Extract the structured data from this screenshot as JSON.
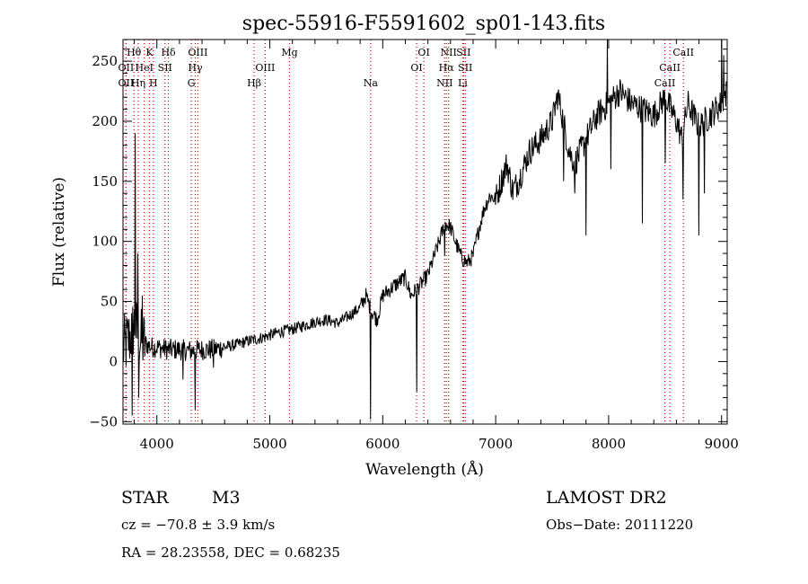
{
  "chart_data": {
    "type": "line",
    "title": "spec-55916-F5591602_sp01-143.fits",
    "xlabel": "Wavelength (Å)",
    "ylabel": "Flux (relative)",
    "xlim": [
      3700,
      9050
    ],
    "ylim": [
      -52,
      268
    ],
    "xticks": [
      4000,
      5000,
      6000,
      7000,
      8000,
      9000
    ],
    "yticks": [
      -50,
      0,
      50,
      100,
      150,
      200,
      250
    ],
    "line_color": "#000000",
    "marker_color": "#cc0000",
    "spectrum_anchors": [
      [
        3700,
        10
      ],
      [
        3760,
        20
      ],
      [
        3800,
        30
      ],
      [
        3850,
        18
      ],
      [
        3900,
        15
      ],
      [
        3950,
        12
      ],
      [
        4000,
        12
      ],
      [
        4100,
        10
      ],
      [
        4200,
        10
      ],
      [
        4300,
        9
      ],
      [
        4400,
        10
      ],
      [
        4500,
        10
      ],
      [
        4600,
        12
      ],
      [
        4700,
        14
      ],
      [
        4800,
        17
      ],
      [
        4900,
        19
      ],
      [
        5000,
        22
      ],
      [
        5100,
        25
      ],
      [
        5200,
        27
      ],
      [
        5300,
        30
      ],
      [
        5400,
        33
      ],
      [
        5500,
        35
      ],
      [
        5600,
        32
      ],
      [
        5700,
        38
      ],
      [
        5800,
        45
      ],
      [
        5850,
        55
      ],
      [
        5900,
        42
      ],
      [
        5950,
        35
      ],
      [
        6000,
        55
      ],
      [
        6100,
        63
      ],
      [
        6200,
        70
      ],
      [
        6250,
        55
      ],
      [
        6300,
        60
      ],
      [
        6400,
        72
      ],
      [
        6500,
        100
      ],
      [
        6550,
        115
      ],
      [
        6600,
        112
      ],
      [
        6650,
        98
      ],
      [
        6700,
        86
      ],
      [
        6750,
        82
      ],
      [
        6800,
        88
      ],
      [
        6850,
        110
      ],
      [
        6900,
        128
      ],
      [
        6950,
        138
      ],
      [
        7000,
        135
      ],
      [
        7050,
        150
      ],
      [
        7100,
        165
      ],
      [
        7150,
        142
      ],
      [
        7200,
        150
      ],
      [
        7300,
        175
      ],
      [
        7400,
        185
      ],
      [
        7500,
        200
      ],
      [
        7550,
        222
      ],
      [
        7600,
        200
      ],
      [
        7650,
        175
      ],
      [
        7700,
        165
      ],
      [
        7800,
        185
      ],
      [
        7900,
        205
      ],
      [
        8000,
        215
      ],
      [
        8100,
        225
      ],
      [
        8200,
        215
      ],
      [
        8300,
        210
      ],
      [
        8400,
        205
      ],
      [
        8500,
        220
      ],
      [
        8600,
        200
      ],
      [
        8650,
        185
      ],
      [
        8700,
        215
      ],
      [
        8800,
        195
      ],
      [
        8900,
        205
      ],
      [
        9000,
        215
      ],
      [
        9050,
        225
      ]
    ],
    "spectrum_dips": [
      [
        3780,
        -45
      ],
      [
        3840,
        -30
      ],
      [
        4230,
        -15
      ],
      [
        4340,
        -40
      ],
      [
        4500,
        -5
      ],
      [
        5890,
        -48
      ],
      [
        6300,
        -25
      ],
      [
        6550,
        88
      ],
      [
        7600,
        150
      ],
      [
        7700,
        140
      ],
      [
        7800,
        105
      ],
      [
        8300,
        115
      ],
      [
        8500,
        165
      ],
      [
        8660,
        135
      ],
      [
        8800,
        105
      ],
      [
        8850,
        140
      ]
    ],
    "spectrum_spikes": [
      [
        3810,
        190
      ],
      [
        3830,
        90
      ],
      [
        3870,
        55
      ],
      [
        7990,
        268
      ],
      [
        8020,
        160
      ],
      [
        9000,
        268
      ],
      [
        9020,
        255
      ]
    ],
    "line_markers": [
      {
        "label": "Hθ",
        "x": 3797,
        "row": 0
      },
      {
        "label": "OII",
        "x": 3727,
        "row": 1
      },
      {
        "label": "OII",
        "x": 3727,
        "row": 2
      },
      {
        "label": "K",
        "x": 3934,
        "row": 0
      },
      {
        "label": "HeI",
        "x": 3889,
        "row": 1
      },
      {
        "label": "Hη",
        "x": 3835,
        "row": 2
      },
      {
        "label": "SII",
        "x": 4072,
        "row": 1
      },
      {
        "label": "H",
        "x": 3969,
        "row": 2
      },
      {
        "label": "Hδ",
        "x": 4102,
        "row": 0
      },
      {
        "label": "OIII",
        "x": 4363,
        "row": 0
      },
      {
        "label": "Hγ",
        "x": 4340,
        "row": 1
      },
      {
        "label": "G",
        "x": 4305,
        "row": 2
      },
      {
        "label": "OIII",
        "x": 4959,
        "row": 1
      },
      {
        "label": "Hβ",
        "x": 4861,
        "row": 2
      },
      {
        "label": "Mg",
        "x": 5175,
        "row": 0
      },
      {
        "label": "Na",
        "x": 5893,
        "row": 2
      },
      {
        "label": "OI",
        "x": 6364,
        "row": 0
      },
      {
        "label": "OI",
        "x": 6300,
        "row": 1
      },
      {
        "label": "NII",
        "x": 6583,
        "row": 0
      },
      {
        "label": "SII",
        "x": 6716,
        "row": 0
      },
      {
        "label": "Hα",
        "x": 6563,
        "row": 1
      },
      {
        "label": "SII",
        "x": 6731,
        "row": 1
      },
      {
        "label": "NII",
        "x": 6548,
        "row": 2
      },
      {
        "label": "Li",
        "x": 6708,
        "row": 2
      },
      {
        "label": "CaII",
        "x": 8662,
        "row": 0
      },
      {
        "label": "CaII",
        "x": 8542,
        "row": 1
      },
      {
        "label": "CaII",
        "x": 8498,
        "row": 2
      }
    ]
  },
  "info": {
    "object_class": "STAR",
    "subclass": "M3",
    "survey": "LAMOST DR2",
    "cz": "cz = −70.8 ± 3.9 km/s",
    "obs_date": "Obs−Date: 20111220",
    "coords": "RA =  28.23558, DEC =   0.68235"
  }
}
